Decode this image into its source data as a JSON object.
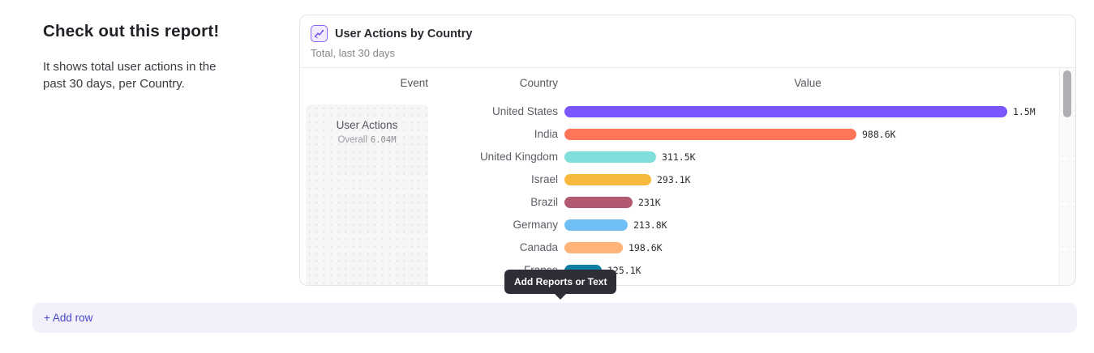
{
  "page": {
    "heading": "Check out this report!",
    "description": "It shows total user actions in the past 30 days, per Country."
  },
  "report_card": {
    "title": "User Actions by Country",
    "subtitle": "Total, last 30 days",
    "icon": "line-chart-icon",
    "columns": {
      "event": "Event",
      "country": "Country",
      "value": "Value"
    },
    "event_cell": {
      "name": "User Actions",
      "overall_label": "Overall",
      "overall_value": "6.04M"
    }
  },
  "chart_data": {
    "type": "bar",
    "orientation": "horizontal",
    "title": "User Actions by Country",
    "subtitle": "Total, last 30 days",
    "xlabel": "Value",
    "ylabel": "Country",
    "xlim": [
      0,
      1500000
    ],
    "grid": false,
    "categories": [
      "United States",
      "India",
      "United Kingdom",
      "Israel",
      "Brazil",
      "Germany",
      "Canada",
      "France"
    ],
    "values": [
      1500000,
      988600,
      311500,
      293100,
      231000,
      213800,
      198600,
      125100
    ],
    "value_labels": [
      "1.5M",
      "988.6K",
      "311.5K",
      "293.1K",
      "231K",
      "213.8K",
      "198.6K",
      "125.1K"
    ],
    "colors": [
      "#7b55fd",
      "#ff7557",
      "#80dedb",
      "#f8ba3c",
      "#b25871",
      "#6fbef5",
      "#ffb377",
      "#0e7fa5"
    ]
  },
  "tooltip": {
    "label": "Add Reports or Text"
  },
  "add_row": {
    "label": "+ Add row"
  },
  "theme": {
    "accent": "#4a47cc",
    "icon_purple": "#6c47f5",
    "tooltip_bg": "#2e2e36",
    "add_row_bg": "#f1f0fb"
  }
}
